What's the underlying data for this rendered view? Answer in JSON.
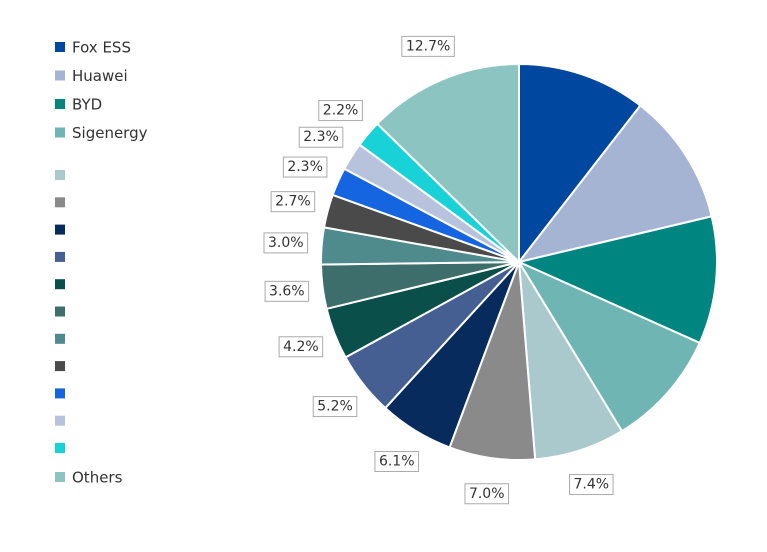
{
  "chart_data": {
    "type": "pie",
    "categories": [
      "Fox ESS",
      "Huawei",
      "BYD",
      "Sigenergy",
      null,
      null,
      null,
      null,
      null,
      null,
      null,
      null,
      null,
      null,
      null,
      "Others"
    ],
    "values": [
      10.5,
      10.8,
      10.4,
      9.6,
      7.4,
      7.0,
      6.1,
      5.2,
      4.2,
      3.6,
      3.0,
      2.7,
      2.3,
      2.3,
      2.2,
      12.7
    ],
    "value_labels": [
      null,
      null,
      null,
      null,
      "7.4%",
      "7.0%",
      "6.1%",
      "5.2%",
      "4.2%",
      "3.6%",
      "3.0%",
      "2.7%",
      "2.3%",
      "2.3%",
      "2.2%",
      "12.7%"
    ],
    "colors": [
      "#0047a0",
      "#a6b4d4",
      "#008580",
      "#6fb5b3",
      "#a9c9cc",
      "#8a8a8a",
      "#062b5c",
      "#455f92",
      "#0a4f4a",
      "#3d6e6b",
      "#4f8a8d",
      "#4a4a4a",
      "#1565e0",
      "#b7c3dd",
      "#18d2d8",
      "#8cc4c2"
    ],
    "legend": "left"
  }
}
